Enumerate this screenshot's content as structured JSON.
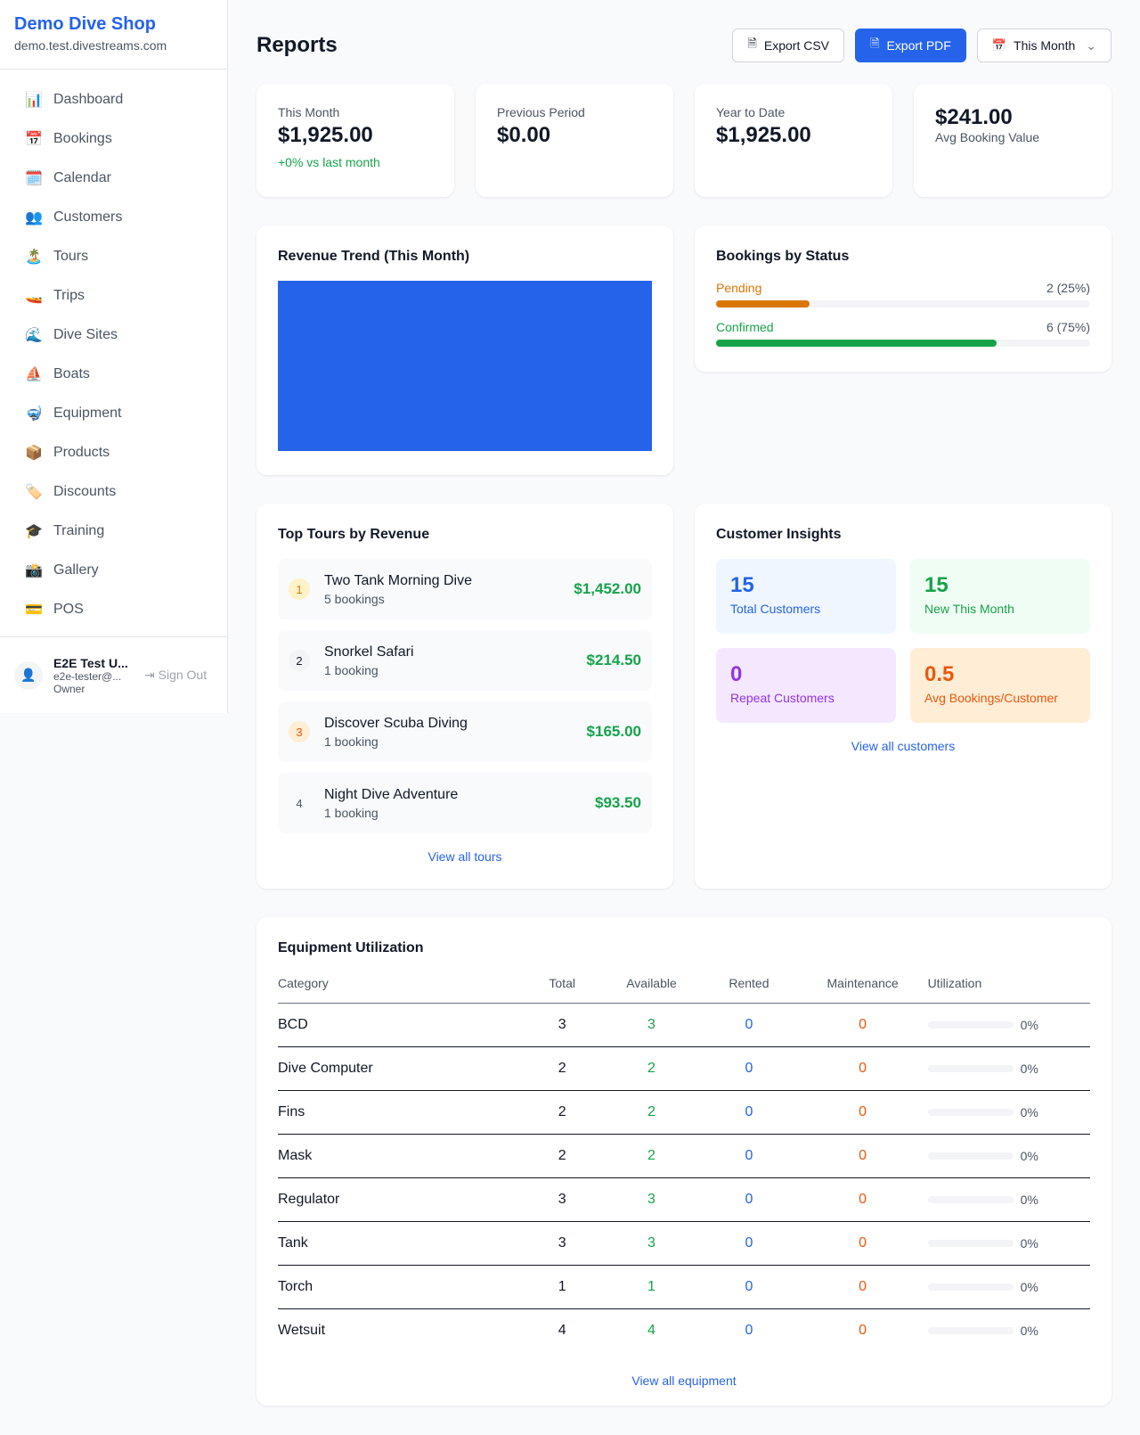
{
  "sidebar": {
    "shop_name": "Demo Dive Shop",
    "domain": "demo.test.divestreams.com",
    "items": [
      {
        "label": "Dashboard",
        "icon": "📊"
      },
      {
        "label": "Bookings",
        "icon": "📅"
      },
      {
        "label": "Calendar",
        "icon": "🗓️"
      },
      {
        "label": "Customers",
        "icon": "👥"
      },
      {
        "label": "Tours",
        "icon": "🏝️"
      },
      {
        "label": "Trips",
        "icon": "🚤"
      },
      {
        "label": "Dive Sites",
        "icon": "🌊"
      },
      {
        "label": "Boats",
        "icon": "⛵"
      },
      {
        "label": "Equipment",
        "icon": "🤿"
      },
      {
        "label": "Products",
        "icon": "📦"
      },
      {
        "label": "Discounts",
        "icon": "🏷️"
      },
      {
        "label": "Training",
        "icon": "🎓"
      },
      {
        "label": "Gallery",
        "icon": "📸"
      },
      {
        "label": "POS",
        "icon": "💳"
      }
    ],
    "user": {
      "name": "E2E Test U...",
      "email": "e2e-tester@...",
      "role": "Owner",
      "sign_out": "Sign Out"
    }
  },
  "header": {
    "title": "Reports",
    "export_csv": "Export CSV",
    "export_pdf": "Export PDF",
    "period": "This Month"
  },
  "stats": [
    {
      "label": "This Month",
      "value": "$1,925.00",
      "sub": "+0% vs last month"
    },
    {
      "label": "Previous Period",
      "value": "$0.00"
    },
    {
      "label": "Year to Date",
      "value": "$1,925.00"
    },
    {
      "value": "$241.00",
      "label": "Avg Booking Value"
    }
  ],
  "revenue_trend": {
    "title": "Revenue Trend (This Month)",
    "color": "#2563eb"
  },
  "bookings_status": {
    "title": "Bookings by Status",
    "rows": [
      {
        "label": "Pending",
        "value": "2 (25%)",
        "percent": 25,
        "color": "#d97706"
      },
      {
        "label": "Confirmed",
        "value": "6 (75%)",
        "percent": 75,
        "color": "#16a34a"
      }
    ]
  },
  "top_tours": {
    "title": "Top Tours by Revenue",
    "link": "View all tours",
    "items": [
      {
        "rank": "1",
        "name": "Two Tank Morning Dive",
        "bookings": "5 bookings",
        "revenue": "$1,452.00"
      },
      {
        "rank": "2",
        "name": "Snorkel Safari",
        "bookings": "1 booking",
        "revenue": "$214.50"
      },
      {
        "rank": "3",
        "name": "Discover Scuba Diving",
        "bookings": "1 booking",
        "revenue": "$165.00"
      },
      {
        "rank": "4",
        "name": "Night Dive Adventure",
        "bookings": "1 booking",
        "revenue": "$93.50"
      }
    ]
  },
  "insights": {
    "title": "Customer Insights",
    "link": "View all customers",
    "boxes": [
      {
        "value": "15",
        "label": "Total Customers"
      },
      {
        "value": "15",
        "label": "New This Month"
      },
      {
        "value": "0",
        "label": "Repeat Customers"
      },
      {
        "value": "0.5",
        "label": "Avg Bookings/Customer"
      }
    ]
  },
  "equipment": {
    "title": "Equipment Utilization",
    "link": "View all equipment",
    "columns": [
      "Category",
      "Total",
      "Available",
      "Rented",
      "Maintenance",
      "Utilization"
    ],
    "rows": [
      [
        "BCD",
        "3",
        "3",
        "0",
        "0",
        "0%"
      ],
      [
        "Dive Computer",
        "2",
        "2",
        "0",
        "0",
        "0%"
      ],
      [
        "Fins",
        "2",
        "2",
        "0",
        "0",
        "0%"
      ],
      [
        "Mask",
        "2",
        "2",
        "0",
        "0",
        "0%"
      ],
      [
        "Regulator",
        "3",
        "3",
        "0",
        "0",
        "0%"
      ],
      [
        "Tank",
        "3",
        "3",
        "0",
        "0",
        "0%"
      ],
      [
        "Torch",
        "1",
        "1",
        "0",
        "0",
        "0%"
      ],
      [
        "Wetsuit",
        "4",
        "4",
        "0",
        "0",
        "0%"
      ]
    ]
  }
}
